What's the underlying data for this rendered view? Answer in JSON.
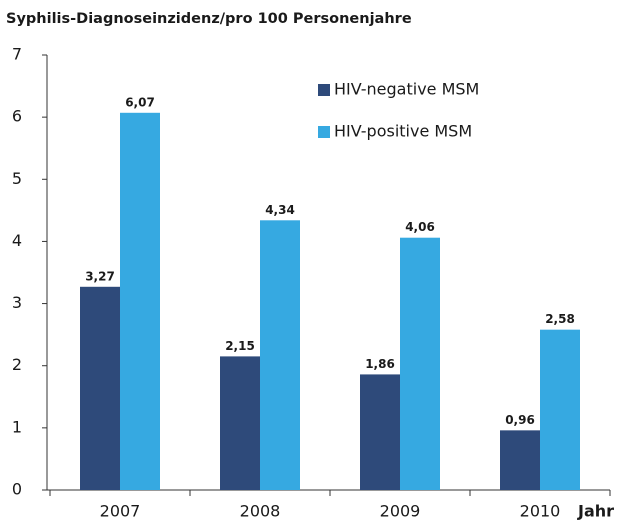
{
  "chart_data": {
    "type": "bar",
    "title": "Syphilis-Diagnoseinzidenz/pro 100 Personenjahre",
    "x_label": "Jahr",
    "categories": [
      "2007",
      "2008",
      "2009",
      "2010"
    ],
    "series": [
      {
        "name": "HIV-negative MSM",
        "color": "#2e4a7a",
        "values": [
          3.27,
          2.15,
          1.86,
          0.96
        ],
        "value_labels": [
          "3,27",
          "2,15",
          "1,86",
          "0,96"
        ]
      },
      {
        "name": "HIV-positive MSM",
        "color": "#36a9e1",
        "values": [
          6.07,
          4.34,
          4.06,
          2.58
        ],
        "value_labels": [
          "6,07",
          "4,34",
          "4,06",
          "2,58"
        ]
      }
    ],
    "ylim": [
      0,
      7
    ],
    "yticks": [
      0,
      1,
      2,
      3,
      4,
      5,
      6,
      7
    ],
    "grid": false
  }
}
